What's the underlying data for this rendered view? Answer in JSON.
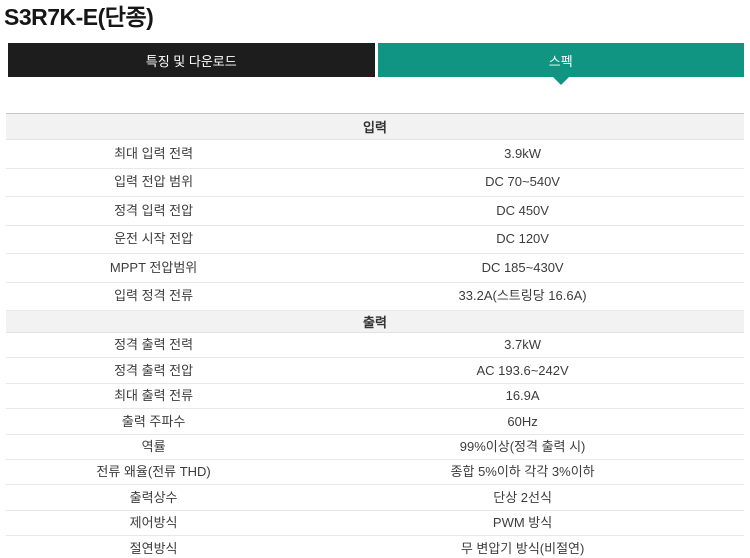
{
  "page": {
    "title": "S3R7K-E(단종)"
  },
  "tabs": [
    {
      "label": "특징 및 다운로드",
      "active": false
    },
    {
      "label": "스펙",
      "active": true
    }
  ],
  "colors": {
    "accent_teal": "#0f9582",
    "tab_dark": "#1d1d1d",
    "section_header_bg": "#f2f2f2"
  },
  "spec_table": {
    "sections": [
      {
        "header": "입력",
        "rows": [
          {
            "label": "최대 입력 전력",
            "value": "3.9kW"
          },
          {
            "label": "입력 전압 범위",
            "value": "DC 70~540V"
          },
          {
            "label": "정격 입력 전압",
            "value": "DC 450V"
          },
          {
            "label": "운전 시작 전압",
            "value": "DC 120V"
          },
          {
            "label": "MPPT 전압범위",
            "value": "DC 185~430V"
          },
          {
            "label": "입력 정격 전류",
            "value": "33.2A(스트링당 16.6A)"
          }
        ]
      },
      {
        "header": "출력",
        "rows": [
          {
            "label": "정격 출력 전력",
            "value": "3.7kW"
          },
          {
            "label": "정격 출력 전압",
            "value": "AC 193.6~242V"
          },
          {
            "label": "최대 출력 전류",
            "value": "16.9A"
          },
          {
            "label": "출력 주파수",
            "value": "60Hz"
          },
          {
            "label": "역률",
            "value": "99%이상(정격 출력 시)"
          },
          {
            "label": "전류 왜율(전류 THD)",
            "value": "종합 5%이하 각각 3%이하"
          },
          {
            "label": "출력상수",
            "value": "단상 2선식"
          },
          {
            "label": "제어방식",
            "value": "PWM 방식"
          },
          {
            "label": "절연방식",
            "value": "무 변압기 방식(비절연)"
          }
        ]
      }
    ]
  }
}
